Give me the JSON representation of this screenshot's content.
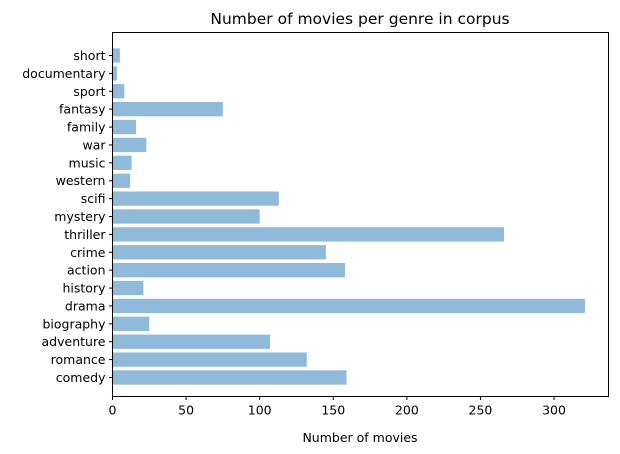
{
  "chart_data": {
    "type": "bar",
    "orientation": "horizontal",
    "title": "Number of movies per genre in corpus",
    "xlabel": "Number of movies",
    "ylabel": "",
    "categories": [
      "comedy",
      "romance",
      "adventure",
      "biography",
      "drama",
      "history",
      "action",
      "crime",
      "thriller",
      "mystery",
      "scifi",
      "western",
      "music",
      "war",
      "family",
      "fantasy",
      "sport",
      "documentary",
      "short"
    ],
    "values": [
      159,
      132,
      107,
      25,
      321,
      21,
      158,
      145,
      266,
      100,
      113,
      12,
      13,
      23,
      16,
      75,
      8,
      3,
      5
    ],
    "xlim": [
      0,
      337
    ],
    "xticks": [
      0,
      50,
      100,
      150,
      200,
      250,
      300
    ],
    "grid": false,
    "bar_color": "#8fbad9"
  }
}
